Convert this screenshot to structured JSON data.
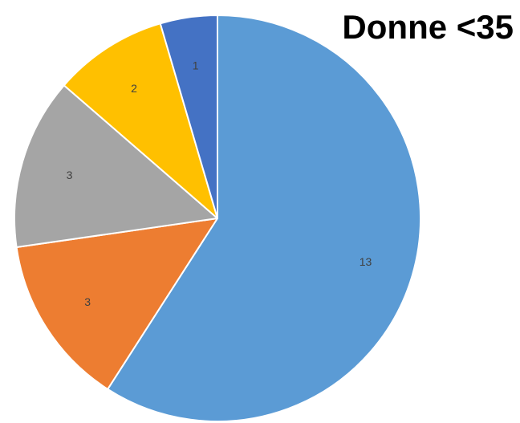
{
  "chart_data": {
    "type": "pie",
    "title": "Donne <35",
    "categories": [
      "",
      "",
      "",
      "",
      ""
    ],
    "values": [
      13,
      3,
      3,
      2,
      1
    ],
    "colors": [
      "#5B9BD5",
      "#ED7D31",
      "#A5A5A5",
      "#FFC000",
      "#4472C4"
    ],
    "start_angle_deg": 0,
    "direction": "clockwise",
    "data_labels": [
      "13",
      "3",
      "3",
      "2",
      "1"
    ],
    "legend": "none"
  }
}
